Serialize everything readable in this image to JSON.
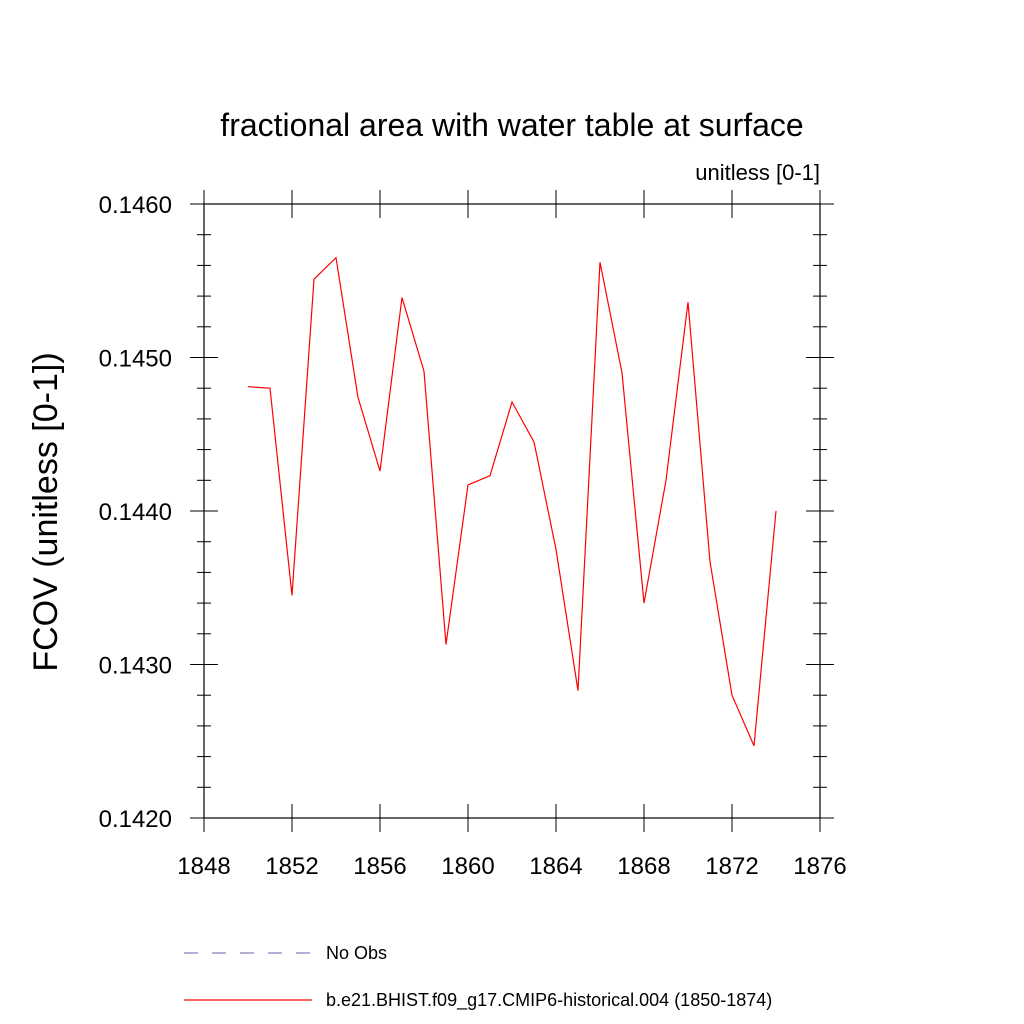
{
  "chart_data": {
    "type": "line",
    "title": "fractional area with water table at surface",
    "subtitle": "unitless [0-1]",
    "xlabel": "",
    "ylabel": "FCOV  (unitless [0-1])",
    "xlim": [
      1848,
      1876
    ],
    "ylim": [
      0.142,
      0.146
    ],
    "x_ticks": [
      1848,
      1852,
      1856,
      1860,
      1864,
      1868,
      1872,
      1876
    ],
    "x_tick_labels": [
      "1848",
      "1852",
      "1856",
      "1860",
      "1864",
      "1868",
      "1872",
      "1876"
    ],
    "y_ticks": [
      0.142,
      0.143,
      0.144,
      0.145,
      0.146
    ],
    "y_tick_labels": [
      "0.1420",
      "0.1430",
      "0.1440",
      "0.1450",
      "0.1460"
    ],
    "grid": false,
    "legend_position": "bottom",
    "series": [
      {
        "name": "b.e21.BHIST.f09_g17.CMIP6-historical.004 (1850-1874)",
        "color": "#ff0000",
        "style": "solid",
        "x": [
          1850,
          1851,
          1852,
          1853,
          1854,
          1855,
          1856,
          1857,
          1858,
          1859,
          1860,
          1861,
          1862,
          1863,
          1864,
          1865,
          1866,
          1867,
          1868,
          1869,
          1870,
          1871,
          1872,
          1873,
          1874
        ],
        "values": [
          0.14481,
          0.1448,
          0.14345,
          0.14551,
          0.14565,
          0.14474,
          0.14426,
          0.14539,
          0.14491,
          0.14313,
          0.14417,
          0.14423,
          0.14471,
          0.14445,
          0.14375,
          0.14283,
          0.14562,
          0.1449,
          0.1434,
          0.1442,
          0.14536,
          0.14367,
          0.1428,
          0.14247,
          0.144
        ]
      }
    ],
    "legend": [
      {
        "label": "No Obs",
        "color": "#8080c0",
        "style": "dashed"
      },
      {
        "label": "b.e21.BHIST.f09_g17.CMIP6-historical.004 (1850-1874)",
        "color": "#ff0000",
        "style": "solid"
      }
    ]
  }
}
